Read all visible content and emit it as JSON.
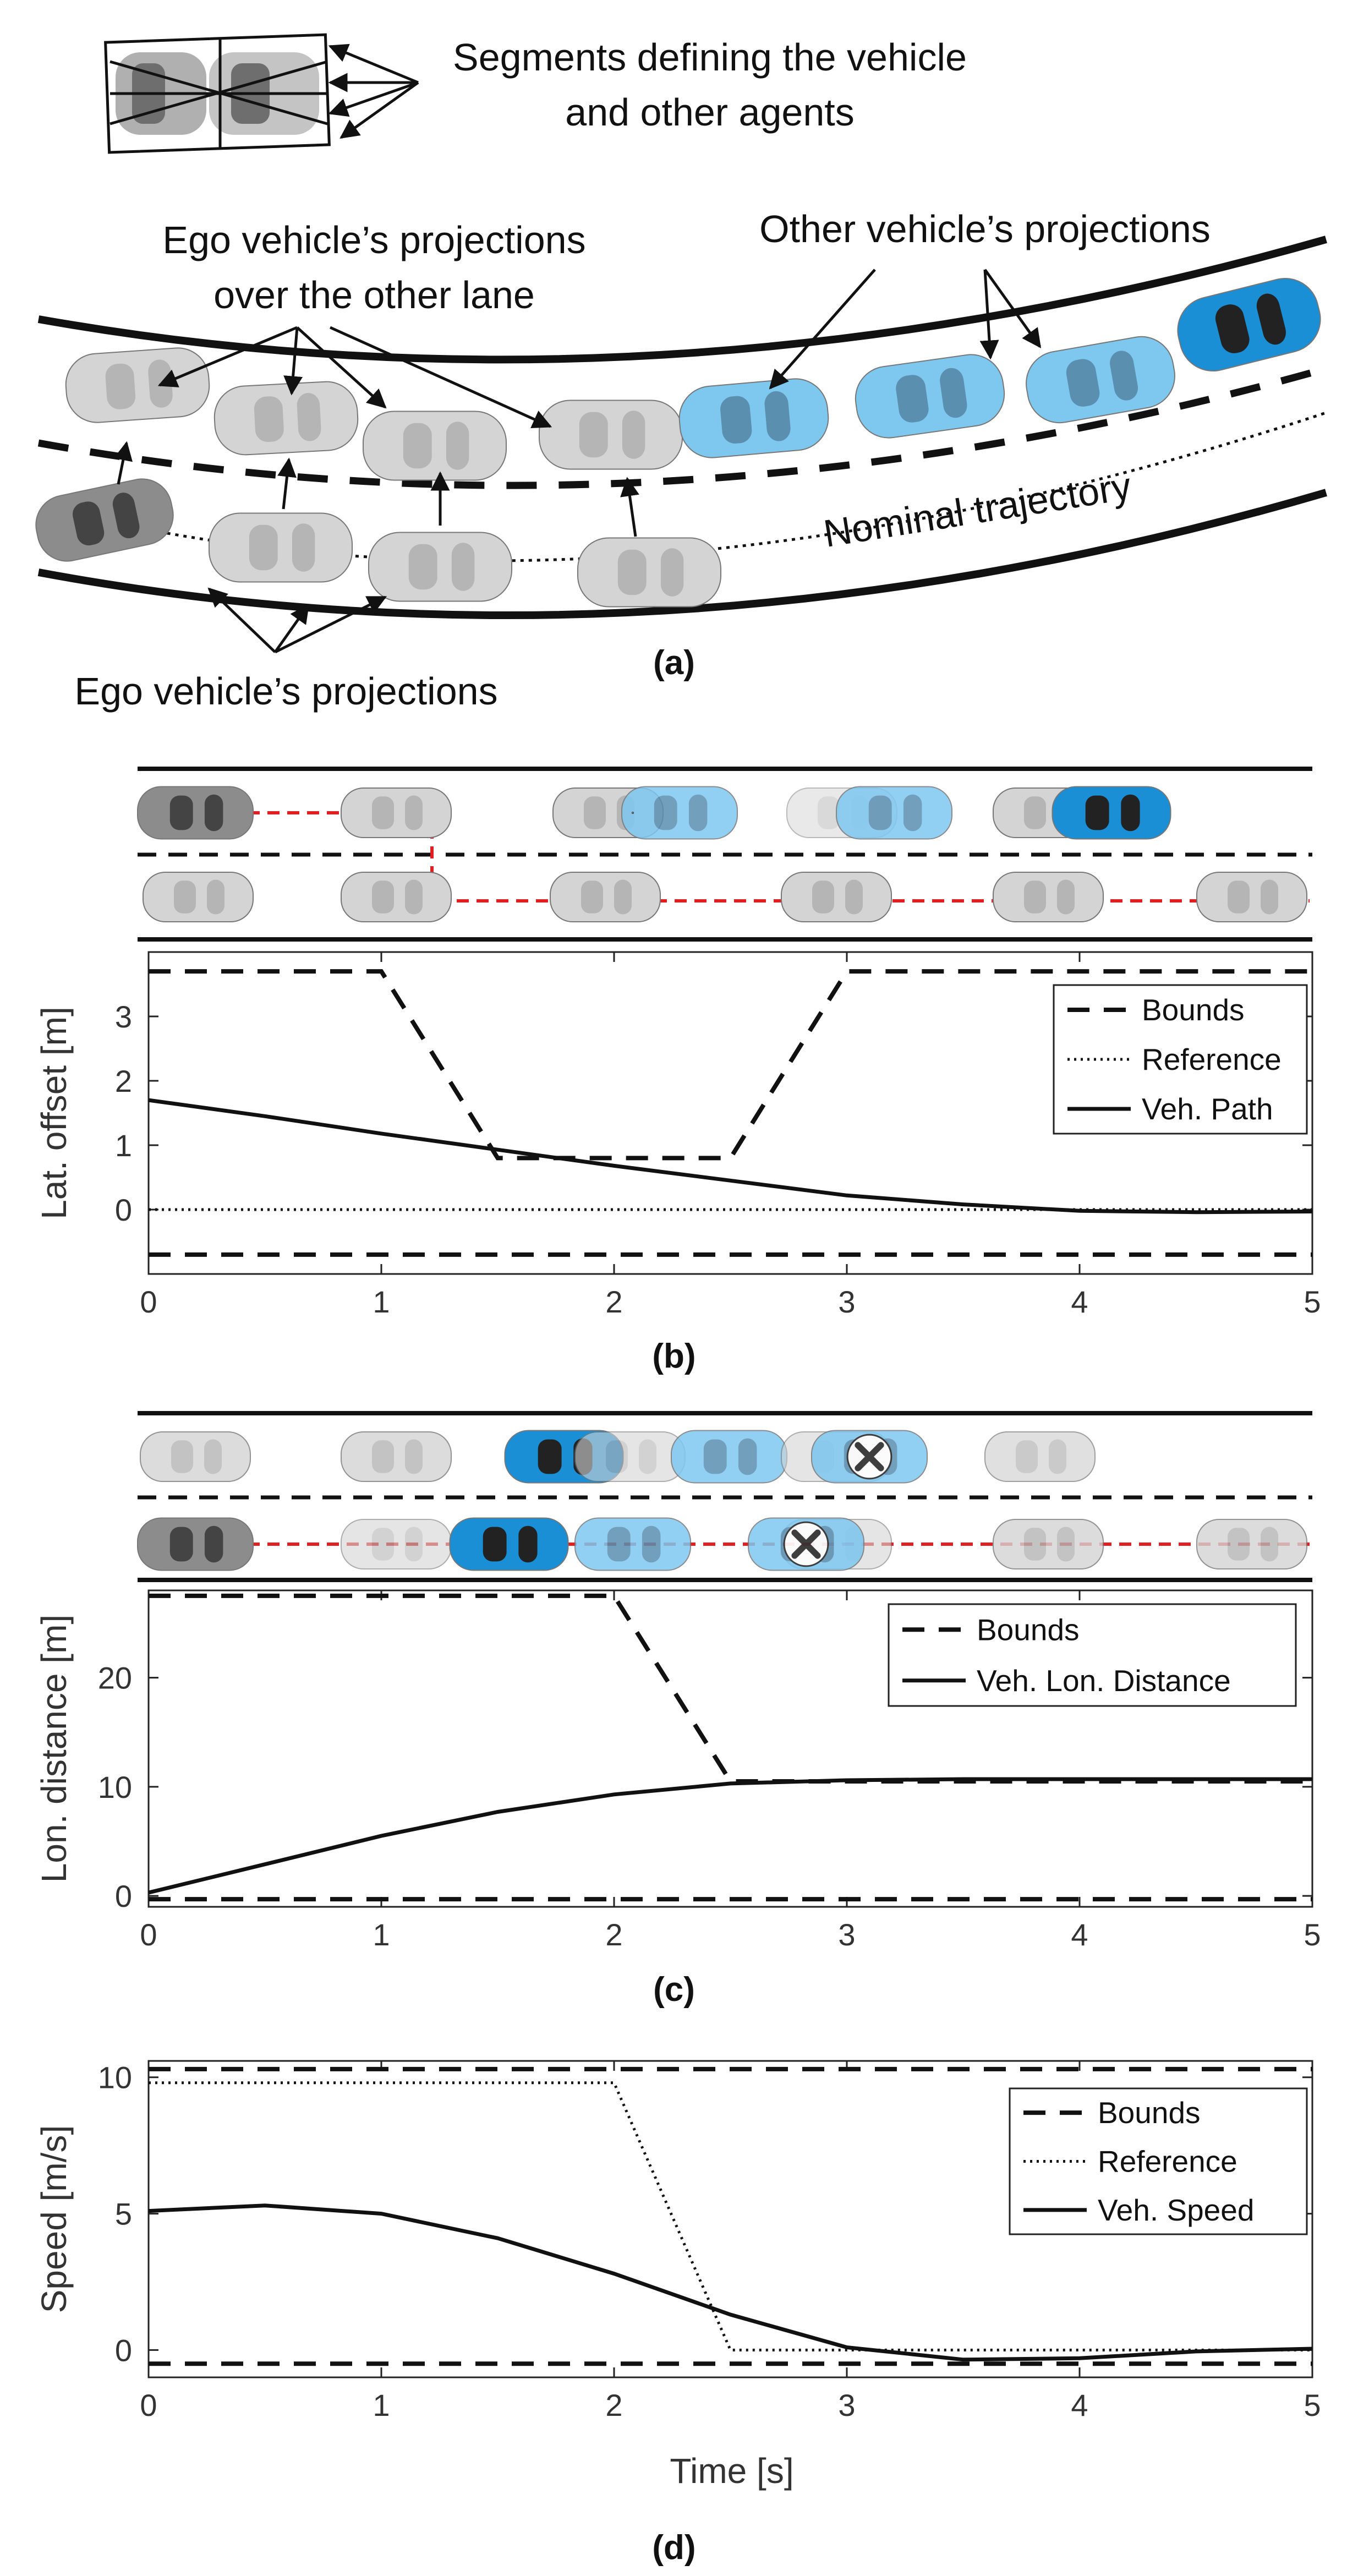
{
  "colors": {
    "ego": "#8c8c8c",
    "ghost": "#d4d4d4",
    "other_light": "#7ec8f0",
    "other_dark": "#1a8fd6",
    "red": "#e02020",
    "black": "#111111"
  },
  "panel_a": {
    "label": "(a)",
    "segments_note_line1": "Segments defining the vehicle",
    "segments_note_line2": "and other agents",
    "ego_over_line1": "Ego vehicle’s projections",
    "ego_over_line2": "over the other lane",
    "other_proj": "Other vehicle’s projections",
    "nominal": "Nominal trajectory",
    "ego_proj": "Ego vehicle’s projections"
  },
  "panel_labels": {
    "b": "(b)",
    "c": "(c)",
    "d": "(d)"
  },
  "xlabel_d": "Time [s]",
  "chart_data": [
    {
      "type": "line",
      "panel": "(b)",
      "ylabel": "Lat. offset [m]",
      "xlim": [
        0,
        5
      ],
      "ylim": [
        -1,
        4
      ],
      "xticks": [
        0,
        1,
        2,
        3,
        4,
        5
      ],
      "yticks": [
        0,
        1,
        2,
        3
      ],
      "legend": "top-right",
      "series": [
        {
          "name": "Bounds",
          "style": "dashed",
          "x": [
            0,
            1,
            1.5,
            2.5,
            3,
            5
          ],
          "y": [
            3.7,
            3.7,
            0.8,
            0.8,
            3.7,
            3.7
          ]
        },
        {
          "name": "",
          "style": "dashed",
          "x": [
            0,
            5
          ],
          "y": [
            -0.7,
            -0.7
          ]
        },
        {
          "name": "Reference",
          "style": "dotted",
          "x": [
            0,
            5
          ],
          "y": [
            0,
            0
          ]
        },
        {
          "name": "Veh. Path",
          "style": "solid",
          "x": [
            0,
            0.5,
            1,
            1.5,
            2,
            2.5,
            3,
            3.5,
            4,
            4.5,
            5
          ],
          "y": [
            1.7,
            1.45,
            1.18,
            0.93,
            0.68,
            0.45,
            0.22,
            0.08,
            -0.02,
            -0.04,
            -0.03
          ]
        }
      ]
    },
    {
      "type": "line",
      "panel": "(c)",
      "ylabel": "Lon. distance [m]",
      "xlim": [
        0,
        5
      ],
      "ylim": [
        -1,
        28
      ],
      "xticks": [
        0,
        1,
        2,
        3,
        4,
        5
      ],
      "yticks": [
        0,
        10,
        20
      ],
      "legend": "top-right",
      "series": [
        {
          "name": "Bounds",
          "style": "dashed",
          "x": [
            0,
            2,
            2.5,
            5
          ],
          "y": [
            27.5,
            27.5,
            10.5,
            10.5
          ]
        },
        {
          "name": "",
          "style": "dashed",
          "x": [
            0,
            5
          ],
          "y": [
            -0.3,
            -0.3
          ]
        },
        {
          "name": "Veh. Lon. Distance",
          "style": "solid",
          "x": [
            0,
            0.5,
            1,
            1.5,
            2,
            2.5,
            3,
            3.5,
            4,
            4.5,
            5
          ],
          "y": [
            0.3,
            2.9,
            5.5,
            7.7,
            9.3,
            10.3,
            10.6,
            10.7,
            10.7,
            10.7,
            10.7
          ]
        }
      ]
    },
    {
      "type": "line",
      "panel": "(d)",
      "ylabel": "Speed [m/s]",
      "xlabel": "Time [s]",
      "xlim": [
        0,
        5
      ],
      "ylim": [
        -1,
        10.6
      ],
      "xticks": [
        0,
        1,
        2,
        3,
        4,
        5
      ],
      "yticks": [
        0,
        5,
        10
      ],
      "legend": "top-right",
      "series": [
        {
          "name": "Bounds",
          "style": "dashed",
          "x": [
            0,
            5
          ],
          "y": [
            10.3,
            10.3
          ]
        },
        {
          "name": "",
          "style": "dashed",
          "x": [
            0,
            5
          ],
          "y": [
            -0.5,
            -0.5
          ]
        },
        {
          "name": "Reference",
          "style": "dotted",
          "x": [
            0,
            2,
            2.5,
            5
          ],
          "y": [
            9.8,
            9.8,
            0,
            0
          ]
        },
        {
          "name": "Veh. Speed",
          "style": "solid",
          "x": [
            0,
            0.5,
            1,
            1.5,
            2,
            2.5,
            3,
            3.5,
            4,
            4.5,
            5
          ],
          "y": [
            5.1,
            5.3,
            5.0,
            4.1,
            2.8,
            1.3,
            0.1,
            -0.35,
            -0.3,
            -0.05,
            0.05
          ]
        }
      ]
    }
  ]
}
